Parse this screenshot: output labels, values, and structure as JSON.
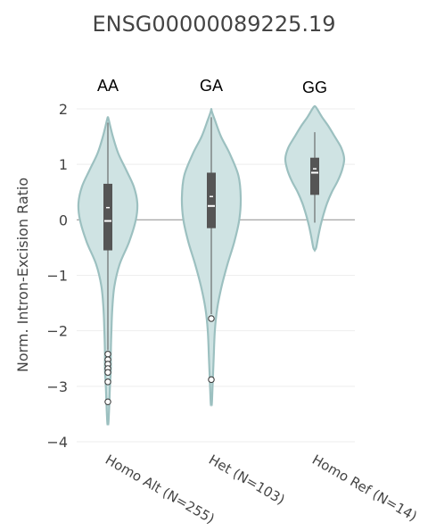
{
  "chart_data": {
    "type": "violin",
    "title": "ENSG00000089225.19",
    "ylabel": "Norm. Intron-Excision Ratio",
    "xlabel": "",
    "ylim": [
      -4,
      2
    ],
    "yticks": [
      "2",
      "1",
      "0",
      "−1",
      "−2",
      "−3",
      "−4"
    ],
    "grid": true,
    "colors": {
      "fill": "#cfe3e3",
      "stroke": "#9cc0c0",
      "box": "#555555",
      "median": "#ffffff",
      "zero_line": "#999999",
      "grid": "#eeeeee"
    },
    "categories": [
      "Homo Alt (N=255)",
      "Het (N=103)",
      "Homo Ref (N=14)"
    ],
    "groups": [
      {
        "label": "Homo Alt (N=255)",
        "genotype": "AA",
        "box": {
          "q1": -0.55,
          "median": -0.02,
          "mean": 0.22,
          "q3": 0.65,
          "whisker_low": -2.35,
          "whisker_high": 1.75
        },
        "outliers": [
          -2.42,
          -2.52,
          -2.6,
          -2.68,
          -2.75,
          -2.92,
          -3.28
        ],
        "density": [
          [
            -3.65,
            0.02
          ],
          [
            -3.3,
            0.05
          ],
          [
            -3.0,
            0.07
          ],
          [
            -2.7,
            0.1
          ],
          [
            -2.4,
            0.1
          ],
          [
            -2.0,
            0.12
          ],
          [
            -1.6,
            0.15
          ],
          [
            -1.2,
            0.22
          ],
          [
            -0.8,
            0.4
          ],
          [
            -0.4,
            0.72
          ],
          [
            0.0,
            0.95
          ],
          [
            0.3,
            1.0
          ],
          [
            0.6,
            0.88
          ],
          [
            0.9,
            0.62
          ],
          [
            1.2,
            0.35
          ],
          [
            1.5,
            0.17
          ],
          [
            1.8,
            0.03
          ]
        ]
      },
      {
        "label": "Het (N=103)",
        "genotype": "GA",
        "box": {
          "q1": -0.15,
          "median": 0.25,
          "mean": 0.42,
          "q3": 0.85,
          "whisker_low": -1.7,
          "whisker_high": 1.85
        },
        "outliers": [
          -1.78,
          -2.88
        ],
        "density": [
          [
            -3.3,
            0.02
          ],
          [
            -2.9,
            0.05
          ],
          [
            -2.5,
            0.08
          ],
          [
            -2.0,
            0.12
          ],
          [
            -1.6,
            0.2
          ],
          [
            -1.2,
            0.35
          ],
          [
            -0.8,
            0.55
          ],
          [
            -0.4,
            0.78
          ],
          [
            0.0,
            0.95
          ],
          [
            0.4,
            1.0
          ],
          [
            0.8,
            0.92
          ],
          [
            1.2,
            0.62
          ],
          [
            1.5,
            0.33
          ],
          [
            1.8,
            0.12
          ],
          [
            1.95,
            0.02
          ]
        ]
      },
      {
        "label": "Homo Ref (N=14)",
        "genotype": "GG",
        "box": {
          "q1": 0.45,
          "median": 0.85,
          "mean": 0.92,
          "q3": 1.12,
          "whisker_low": -0.05,
          "whisker_high": 1.58
        },
        "outliers": [],
        "density": [
          [
            -0.5,
            0.05
          ],
          [
            -0.3,
            0.12
          ],
          [
            -0.1,
            0.2
          ],
          [
            0.1,
            0.3
          ],
          [
            0.3,
            0.42
          ],
          [
            0.5,
            0.58
          ],
          [
            0.7,
            0.78
          ],
          [
            0.9,
            0.93
          ],
          [
            1.1,
            1.0
          ],
          [
            1.3,
            0.9
          ],
          [
            1.5,
            0.68
          ],
          [
            1.7,
            0.45
          ],
          [
            1.85,
            0.25
          ],
          [
            2.0,
            0.08
          ]
        ]
      }
    ]
  }
}
